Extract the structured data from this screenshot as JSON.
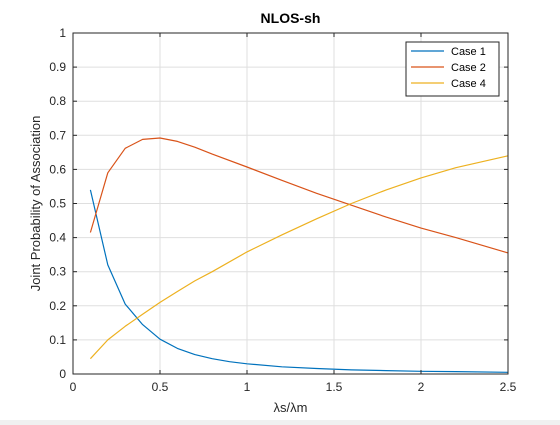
{
  "chart_data": {
    "type": "line",
    "title": "NLOS-sh",
    "xlabel": "λs/λm",
    "ylabel": "Joint Probability of Association",
    "xlim": [
      0,
      2.5
    ],
    "ylim": [
      0,
      1
    ],
    "xticks": [
      0,
      0.5,
      1,
      1.5,
      2,
      2.5
    ],
    "xtick_labels": [
      "0",
      "0.5",
      "1",
      "1.5",
      "2",
      "2.5"
    ],
    "yticks": [
      0,
      0.1,
      0.2,
      0.3,
      0.4,
      0.5,
      0.6,
      0.7,
      0.8,
      0.9,
      1
    ],
    "ytick_labels": [
      "0",
      "0.1",
      "0.2",
      "0.3",
      "0.4",
      "0.5",
      "0.6",
      "0.7",
      "0.8",
      "0.9",
      "1"
    ],
    "grid": true,
    "legend_position": "top-right",
    "series": [
      {
        "name": "Case 1",
        "color": "#0072BD",
        "x": [
          0.1,
          0.2,
          0.3,
          0.4,
          0.5,
          0.6,
          0.7,
          0.8,
          0.9,
          1.0,
          1.2,
          1.4,
          1.6,
          1.8,
          2.0,
          2.2,
          2.5
        ],
        "y": [
          0.54,
          0.32,
          0.205,
          0.145,
          0.102,
          0.075,
          0.057,
          0.045,
          0.036,
          0.03,
          0.021,
          0.016,
          0.012,
          0.01,
          0.008,
          0.007,
          0.005
        ]
      },
      {
        "name": "Case 2",
        "color": "#D95319",
        "x": [
          0.1,
          0.2,
          0.3,
          0.4,
          0.5,
          0.6,
          0.7,
          0.8,
          1.0,
          1.2,
          1.4,
          1.6,
          1.8,
          2.0,
          2.2,
          2.5
        ],
        "y": [
          0.415,
          0.59,
          0.662,
          0.688,
          0.692,
          0.682,
          0.665,
          0.645,
          0.607,
          0.568,
          0.53,
          0.495,
          0.46,
          0.428,
          0.4,
          0.355
        ]
      },
      {
        "name": "Case 4",
        "color": "#EDB120",
        "x": [
          0.1,
          0.2,
          0.3,
          0.4,
          0.5,
          0.6,
          0.7,
          0.8,
          1.0,
          1.2,
          1.4,
          1.6,
          1.8,
          2.0,
          2.2,
          2.5
        ],
        "y": [
          0.045,
          0.1,
          0.14,
          0.175,
          0.21,
          0.242,
          0.273,
          0.3,
          0.358,
          0.408,
          0.455,
          0.5,
          0.54,
          0.575,
          0.605,
          0.64
        ]
      }
    ]
  }
}
